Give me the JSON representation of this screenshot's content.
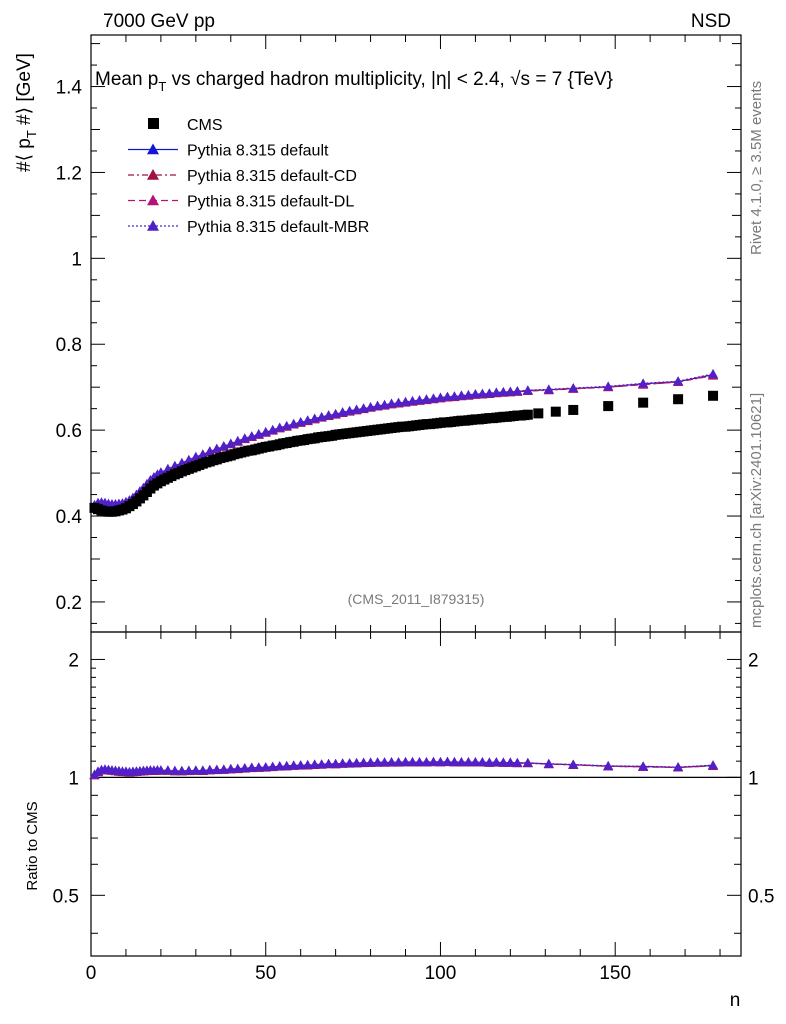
{
  "header": {
    "left": "7000 GeV pp",
    "right": "NSD"
  },
  "side_text": {
    "rivet": "Rivet 4.1.0, ≥ 3.5M events",
    "mcplots": "mcplots.cern.ch [arXiv:2401.10621]"
  },
  "chart_data": {
    "type": "scatter",
    "title_parts": {
      "mean": "Mean p",
      "sub_t": "T",
      "middle": " vs charged hadron multiplicity, ",
      "eta": "|η| < 2.4, ",
      "sqrt": "√",
      "s_end": "s = 7 {TeV}"
    },
    "ylabel_parts": {
      "pre": "#⟨ p",
      "sub": "T",
      "post": " #⟩ [GeV]"
    },
    "xlabel": "n",
    "ratio_ylabel": "Ratio to CMS",
    "watermark": "(CMS_2011_I879315)",
    "xlim": [
      0,
      186
    ],
    "ylim": [
      0.13,
      1.52
    ],
    "ratio_ylim": [
      0.35,
      2.35
    ],
    "x_ticks": [
      0,
      50,
      100,
      150
    ],
    "y_ticks": [
      {
        "v": 0.2,
        "label": "0.2"
      },
      {
        "v": 0.4,
        "label": "0.4"
      },
      {
        "v": 0.6,
        "label": "0.6"
      },
      {
        "v": 0.8,
        "label": "0.8"
      },
      {
        "v": 1.0,
        "label": "1"
      },
      {
        "v": 1.2,
        "label": "1.2"
      },
      {
        "v": 1.4,
        "label": "1.4"
      }
    ],
    "ratio_ticks": [
      {
        "v": 0.5,
        "label": "0.5"
      },
      {
        "v": 1.0,
        "label": "1"
      },
      {
        "v": 2.0,
        "label": "2"
      }
    ],
    "series": [
      {
        "name": "CMS",
        "marker": "square",
        "color": "#000000",
        "dash": "",
        "x": [
          1,
          2,
          3,
          4,
          5,
          6,
          7,
          8,
          9,
          10,
          11,
          12,
          13,
          14,
          15,
          16,
          17,
          18,
          19,
          20,
          21,
          22,
          23,
          24,
          25,
          26,
          27,
          28,
          29,
          30,
          31,
          32,
          33,
          34,
          35,
          36,
          37,
          38,
          39,
          40,
          41,
          42,
          43,
          44,
          45,
          46,
          47,
          48,
          49,
          50,
          51,
          52,
          53,
          54,
          55,
          56,
          57,
          58,
          59,
          60,
          61,
          62,
          63,
          64,
          65,
          66,
          67,
          68,
          69,
          70,
          71,
          72,
          73,
          74,
          75,
          76,
          77,
          78,
          79,
          80,
          81,
          82,
          83,
          84,
          85,
          86,
          87,
          88,
          89,
          90,
          91,
          92,
          93,
          94,
          95,
          96,
          97,
          98,
          99,
          100,
          101,
          102,
          103,
          104,
          105,
          106,
          107,
          108,
          109,
          110,
          111,
          112,
          113,
          114,
          115,
          116,
          117,
          118,
          119,
          120,
          121,
          122,
          123,
          124,
          125,
          128,
          133,
          138,
          148,
          158,
          168,
          178
        ],
        "y": [
          0.419,
          0.416,
          0.413,
          0.411,
          0.41,
          0.41,
          0.411,
          0.413,
          0.415,
          0.418,
          0.423,
          0.428,
          0.434,
          0.441,
          0.448,
          0.456,
          0.464,
          0.471,
          0.476,
          0.481,
          0.485,
          0.489,
          0.493,
          0.497,
          0.5,
          0.504,
          0.507,
          0.51,
          0.513,
          0.516,
          0.519,
          0.522,
          0.525,
          0.527,
          0.53,
          0.532,
          0.535,
          0.537,
          0.539,
          0.541,
          0.544,
          0.546,
          0.548,
          0.55,
          0.552,
          0.553,
          0.555,
          0.557,
          0.559,
          0.561,
          0.562,
          0.564,
          0.565,
          0.567,
          0.569,
          0.57,
          0.572,
          0.573,
          0.575,
          0.576,
          0.577,
          0.579,
          0.58,
          0.581,
          0.583,
          0.584,
          0.585,
          0.586,
          0.587,
          0.589,
          0.59,
          0.591,
          0.592,
          0.593,
          0.594,
          0.595,
          0.596,
          0.597,
          0.598,
          0.599,
          0.6,
          0.601,
          0.602,
          0.603,
          0.604,
          0.605,
          0.606,
          0.607,
          0.608,
          0.608,
          0.609,
          0.61,
          0.611,
          0.612,
          0.613,
          0.614,
          0.614,
          0.615,
          0.616,
          0.617,
          0.618,
          0.618,
          0.619,
          0.62,
          0.621,
          0.622,
          0.622,
          0.623,
          0.624,
          0.625,
          0.625,
          0.626,
          0.627,
          0.628,
          0.628,
          0.629,
          0.63,
          0.631,
          0.631,
          0.632,
          0.633,
          0.634,
          0.634,
          0.635,
          0.636,
          0.639,
          0.643,
          0.647,
          0.656,
          0.664,
          0.672,
          0.68
        ]
      },
      {
        "name": "Pythia 8.315 default",
        "marker": "triangle",
        "color": "#1515d4",
        "dash": "",
        "x": [
          1,
          2,
          3,
          4,
          5,
          6,
          7,
          8,
          9,
          10,
          11,
          12,
          13,
          14,
          15,
          16,
          17,
          18,
          19,
          20,
          22,
          24,
          26,
          28,
          30,
          32,
          34,
          36,
          38,
          40,
          42,
          44,
          46,
          48,
          50,
          52,
          54,
          56,
          58,
          60,
          62,
          64,
          66,
          68,
          70,
          72,
          74,
          76,
          78,
          80,
          82,
          84,
          86,
          88,
          90,
          92,
          94,
          96,
          98,
          100,
          102,
          104,
          106,
          108,
          110,
          112,
          114,
          116,
          118,
          120,
          122,
          125,
          131,
          138,
          148,
          158,
          168,
          178
        ],
        "y": [
          0.425,
          0.43,
          0.431,
          0.43,
          0.428,
          0.427,
          0.427,
          0.428,
          0.429,
          0.432,
          0.436,
          0.442,
          0.449,
          0.457,
          0.465,
          0.474,
          0.483,
          0.49,
          0.496,
          0.501,
          0.509,
          0.516,
          0.523,
          0.53,
          0.537,
          0.543,
          0.55,
          0.556,
          0.562,
          0.568,
          0.574,
          0.58,
          0.585,
          0.59,
          0.595,
          0.6,
          0.605,
          0.609,
          0.614,
          0.618,
          0.622,
          0.626,
          0.63,
          0.634,
          0.637,
          0.641,
          0.644,
          0.647,
          0.65,
          0.653,
          0.656,
          0.658,
          0.661,
          0.663,
          0.665,
          0.667,
          0.669,
          0.671,
          0.673,
          0.675,
          0.677,
          0.678,
          0.68,
          0.681,
          0.683,
          0.684,
          0.685,
          0.687,
          0.688,
          0.689,
          0.69,
          0.692,
          0.694,
          0.697,
          0.701,
          0.708,
          0.713,
          0.729
        ]
      },
      {
        "name": "Pythia 8.315 default-CD",
        "marker": "triangle",
        "color": "#a01040",
        "dash": "6,3,2,3",
        "x": [
          1,
          2,
          3,
          4,
          5,
          6,
          7,
          8,
          9,
          10,
          11,
          12,
          13,
          14,
          15,
          16,
          17,
          18,
          19,
          20,
          22,
          24,
          26,
          28,
          30,
          32,
          34,
          36,
          38,
          40,
          42,
          44,
          46,
          48,
          50,
          52,
          54,
          56,
          58,
          60,
          62,
          64,
          66,
          68,
          70,
          72,
          74,
          76,
          78,
          80,
          82,
          84,
          86,
          88,
          90,
          92,
          94,
          96,
          98,
          100,
          102,
          104,
          106,
          108,
          110,
          112,
          114,
          116,
          118,
          120,
          122,
          125,
          131,
          138,
          148,
          158,
          168,
          178
        ],
        "y": [
          0.424,
          0.429,
          0.43,
          0.429,
          0.427,
          0.426,
          0.426,
          0.427,
          0.428,
          0.431,
          0.435,
          0.441,
          0.448,
          0.456,
          0.464,
          0.473,
          0.482,
          0.489,
          0.495,
          0.5,
          0.508,
          0.515,
          0.522,
          0.529,
          0.536,
          0.542,
          0.549,
          0.555,
          0.561,
          0.567,
          0.573,
          0.579,
          0.584,
          0.589,
          0.594,
          0.599,
          0.604,
          0.608,
          0.613,
          0.617,
          0.621,
          0.625,
          0.629,
          0.633,
          0.636,
          0.64,
          0.643,
          0.646,
          0.649,
          0.652,
          0.655,
          0.657,
          0.66,
          0.662,
          0.664,
          0.666,
          0.668,
          0.67,
          0.672,
          0.674,
          0.676,
          0.677,
          0.679,
          0.68,
          0.682,
          0.683,
          0.684,
          0.686,
          0.687,
          0.688,
          0.689,
          0.691,
          0.693,
          0.696,
          0.7,
          0.706,
          0.712,
          0.727
        ]
      },
      {
        "name": "Pythia 8.315 default-DL",
        "marker": "triangle",
        "color": "#b01478",
        "dash": "7,4",
        "x": [
          1,
          2,
          3,
          4,
          5,
          6,
          7,
          8,
          9,
          10,
          11,
          12,
          13,
          14,
          15,
          16,
          17,
          18,
          19,
          20,
          22,
          24,
          26,
          28,
          30,
          32,
          34,
          36,
          38,
          40,
          42,
          44,
          46,
          48,
          50,
          52,
          54,
          56,
          58,
          60,
          62,
          64,
          66,
          68,
          70,
          72,
          74,
          76,
          78,
          80,
          82,
          84,
          86,
          88,
          90,
          92,
          94,
          96,
          98,
          100,
          102,
          104,
          106,
          108,
          110,
          112,
          114,
          116,
          118,
          120,
          122,
          125,
          131,
          138,
          148,
          158,
          168,
          178
        ],
        "y": [
          0.425,
          0.43,
          0.431,
          0.43,
          0.428,
          0.427,
          0.427,
          0.428,
          0.429,
          0.432,
          0.436,
          0.442,
          0.449,
          0.457,
          0.465,
          0.474,
          0.483,
          0.49,
          0.496,
          0.501,
          0.509,
          0.516,
          0.523,
          0.53,
          0.537,
          0.543,
          0.55,
          0.556,
          0.562,
          0.568,
          0.574,
          0.58,
          0.585,
          0.59,
          0.595,
          0.6,
          0.605,
          0.609,
          0.614,
          0.618,
          0.622,
          0.626,
          0.63,
          0.634,
          0.637,
          0.641,
          0.644,
          0.647,
          0.65,
          0.653,
          0.656,
          0.658,
          0.661,
          0.663,
          0.665,
          0.667,
          0.669,
          0.671,
          0.673,
          0.675,
          0.677,
          0.678,
          0.68,
          0.681,
          0.683,
          0.684,
          0.685,
          0.687,
          0.688,
          0.689,
          0.69,
          0.692,
          0.694,
          0.697,
          0.7,
          0.706,
          0.712,
          0.728
        ]
      },
      {
        "name": "Pythia 8.315 default-MBR",
        "marker": "triangle",
        "color": "#5020c8",
        "dash": "2,2",
        "x": [
          1,
          2,
          3,
          4,
          5,
          6,
          7,
          8,
          9,
          10,
          11,
          12,
          13,
          14,
          15,
          16,
          17,
          18,
          19,
          20,
          22,
          24,
          26,
          28,
          30,
          32,
          34,
          36,
          38,
          40,
          42,
          44,
          46,
          48,
          50,
          52,
          54,
          56,
          58,
          60,
          62,
          64,
          66,
          68,
          70,
          72,
          74,
          76,
          78,
          80,
          82,
          84,
          86,
          88,
          90,
          92,
          94,
          96,
          98,
          100,
          102,
          104,
          106,
          108,
          110,
          112,
          114,
          116,
          118,
          120,
          122,
          125,
          131,
          138,
          148,
          158,
          168,
          178
        ],
        "y": [
          0.426,
          0.431,
          0.432,
          0.431,
          0.429,
          0.428,
          0.428,
          0.429,
          0.43,
          0.433,
          0.437,
          0.443,
          0.45,
          0.458,
          0.466,
          0.475,
          0.484,
          0.491,
          0.497,
          0.502,
          0.51,
          0.517,
          0.524,
          0.531,
          0.538,
          0.544,
          0.551,
          0.557,
          0.563,
          0.569,
          0.575,
          0.581,
          0.586,
          0.591,
          0.596,
          0.601,
          0.606,
          0.61,
          0.615,
          0.619,
          0.623,
          0.627,
          0.631,
          0.635,
          0.638,
          0.642,
          0.645,
          0.648,
          0.651,
          0.654,
          0.657,
          0.659,
          0.662,
          0.664,
          0.666,
          0.668,
          0.67,
          0.672,
          0.674,
          0.676,
          0.678,
          0.679,
          0.681,
          0.682,
          0.684,
          0.685,
          0.686,
          0.688,
          0.689,
          0.69,
          0.691,
          0.693,
          0.695,
          0.698,
          0.702,
          0.709,
          0.714,
          0.731
        ]
      }
    ]
  }
}
